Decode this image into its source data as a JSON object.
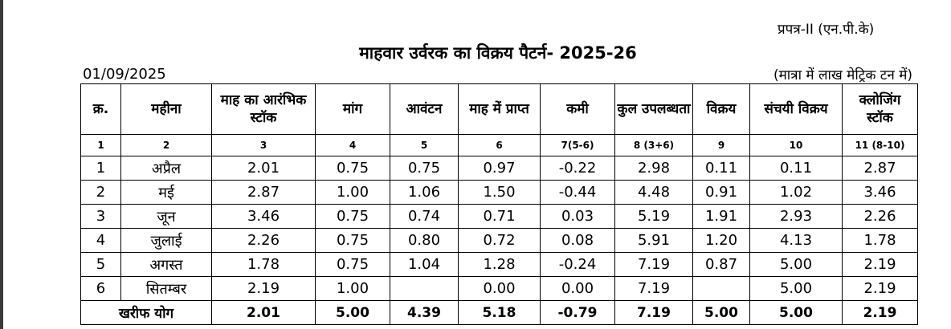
{
  "header": {
    "form_label": "प्रपत्र-II (एन.पी.के)",
    "title": "माहवार उर्वरक का विक्रय पैटर्न-  2025-26",
    "date": "01/09/2025",
    "unit_note": "(मात्रा में लाख मेट्रिक टन में)"
  },
  "table": {
    "columns": [
      "क्र.",
      "महीना",
      "माह का आरंभिक स्टॉक",
      "मांग",
      "आवंटन",
      "माह में प्राप्त",
      "कमी",
      "कुल उपलब्धता",
      "विक्रय",
      "संचयी विक्रय",
      "क्लोजिंग स्टॉक"
    ],
    "column_numbers": [
      "1",
      "2",
      "3",
      "4",
      "5",
      "6",
      "7(5-6)",
      "8 (3+6)",
      "9",
      "10",
      "11 (8-10)"
    ],
    "rows": [
      [
        "1",
        "अप्रैल",
        "2.01",
        "0.75",
        "0.75",
        "0.97",
        "-0.22",
        "2.98",
        "0.11",
        "0.11",
        "2.87"
      ],
      [
        "2",
        "मई",
        "2.87",
        "1.00",
        "1.06",
        "1.50",
        "-0.44",
        "4.48",
        "0.91",
        "1.02",
        "3.46"
      ],
      [
        "3",
        "जून",
        "3.46",
        "0.75",
        "0.74",
        "0.71",
        "0.03",
        "5.19",
        "1.91",
        "2.93",
        "2.26"
      ],
      [
        "4",
        "जुलाई",
        "2.26",
        "0.75",
        "0.80",
        "0.72",
        "0.08",
        "5.91",
        "1.20",
        "4.13",
        "1.78"
      ],
      [
        "5",
        "अगस्त",
        "1.78",
        "0.75",
        "1.04",
        "1.28",
        "-0.24",
        "7.19",
        "0.87",
        "5.00",
        "2.19"
      ],
      [
        "6",
        "सितम्बर",
        "2.19",
        "1.00",
        null,
        "0.00",
        "0.00",
        "7.19",
        null,
        "5.00",
        "2.19"
      ]
    ],
    "total": {
      "label": "खरीफ योग",
      "values": [
        "2.01",
        "5.00",
        "4.39",
        "5.18",
        "-0.79",
        "7.19",
        "5.00",
        "5.00",
        "2.19"
      ]
    }
  }
}
